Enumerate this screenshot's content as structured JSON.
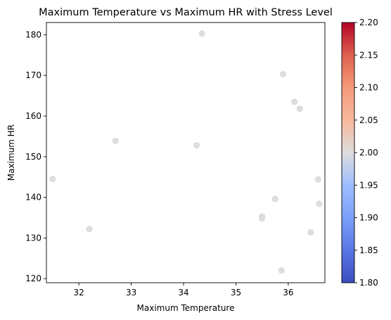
{
  "chart_data": {
    "type": "scatter",
    "title": "Maximum Temperature vs Maximum HR with Stress Level",
    "xlabel": "Maximum Temperature",
    "ylabel": "Maximum HR",
    "xlim": [
      31.38,
      36.7
    ],
    "ylim": [
      119.0,
      183.0
    ],
    "xticks": [
      32,
      33,
      34,
      35,
      36
    ],
    "yticks": [
      120,
      130,
      140,
      150,
      160,
      170,
      180
    ],
    "grid": false,
    "points": [
      {
        "x": 31.5,
        "y": 144.5,
        "stress": 2.0
      },
      {
        "x": 32.2,
        "y": 132.2,
        "stress": 2.0
      },
      {
        "x": 32.7,
        "y": 153.9,
        "stress": 2.0
      },
      {
        "x": 34.25,
        "y": 152.8,
        "stress": 2.0
      },
      {
        "x": 34.35,
        "y": 180.3,
        "stress": 2.0
      },
      {
        "x": 35.5,
        "y": 135.3,
        "stress": 2.0
      },
      {
        "x": 35.5,
        "y": 134.8,
        "stress": 2.0
      },
      {
        "x": 35.75,
        "y": 139.6,
        "stress": 2.0
      },
      {
        "x": 35.87,
        "y": 122.0,
        "stress": 2.0
      },
      {
        "x": 35.9,
        "y": 170.3,
        "stress": 2.0
      },
      {
        "x": 36.12,
        "y": 163.5,
        "stress": 2.0
      },
      {
        "x": 36.22,
        "y": 161.8,
        "stress": 2.0
      },
      {
        "x": 36.43,
        "y": 131.4,
        "stress": 2.0
      },
      {
        "x": 36.57,
        "y": 144.4,
        "stress": 2.0
      },
      {
        "x": 36.59,
        "y": 138.4,
        "stress": 2.0
      }
    ],
    "colorbar": {
      "colormap": "coolwarm",
      "range": [
        1.8,
        2.2
      ],
      "ticks": [
        "1.80",
        "1.85",
        "1.90",
        "1.95",
        "2.00",
        "2.05",
        "2.10",
        "2.15",
        "2.20"
      ],
      "colors": {
        "low": "#3b4cc0",
        "mid": "#dddddd",
        "high": "#b40426"
      }
    },
    "point_color": "#dddddd"
  }
}
